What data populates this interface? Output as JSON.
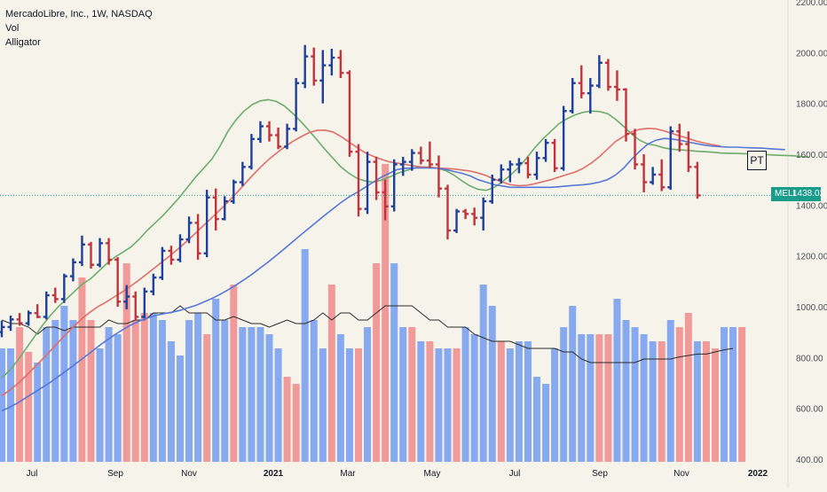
{
  "legend": {
    "symbol": "MercadoLibre, Inc., 1W, NASDAQ",
    "volume_label": "Vol",
    "indicator_label": "Alligator"
  },
  "price_tag": {
    "ticker": "MELI",
    "value": "1438.02",
    "color": "#1a9c8a"
  },
  "marker": {
    "label": "PT"
  },
  "chart_data": {
    "type": "ohlc",
    "title": "MercadoLibre, Inc., 1W, NASDAQ",
    "y_axis": {
      "ticks": [
        "2200.00",
        "2000.00",
        "1800.00",
        "1600.00",
        "1400.00",
        "1200.00",
        "1000.00",
        "800.00",
        "600.00",
        "400.00"
      ],
      "range": [
        400,
        2200
      ]
    },
    "x_axis": {
      "ticks": [
        "Jul",
        "Sep",
        "Nov",
        "2021",
        "Mar",
        "May",
        "Jul",
        "Sep",
        "Nov",
        "2022"
      ]
    },
    "colors": {
      "up": "#1e3f9a",
      "down": "#c2333b",
      "vol_up": "#87a9ef",
      "vol_down": "#f09a9a",
      "jaw": "#5677d8",
      "teeth": "#e06d68",
      "lips": "#6cad6c",
      "vol_ma": "#2b2b2b",
      "last_price_line": "#1a9c8a",
      "background": "#f5f3ea"
    },
    "last_price": 1438.02,
    "ohlc": [
      [
        900,
        945,
        880,
        920
      ],
      [
        920,
        965,
        905,
        950
      ],
      [
        950,
        975,
        925,
        935
      ],
      [
        935,
        985,
        925,
        975
      ],
      [
        975,
        1010,
        955,
        960
      ],
      [
        960,
        1060,
        950,
        1045
      ],
      [
        1045,
        1075,
        1015,
        1030
      ],
      [
        1030,
        1130,
        1015,
        1120
      ],
      [
        1120,
        1190,
        1100,
        1175
      ],
      [
        1175,
        1280,
        1160,
        1245
      ],
      [
        1245,
        1255,
        1150,
        1165
      ],
      [
        1165,
        1270,
        1155,
        1250
      ],
      [
        1250,
        1270,
        1165,
        1185
      ],
      [
        1185,
        1195,
        1000,
        1020
      ],
      [
        1020,
        1085,
        990,
        1040
      ],
      [
        1040,
        1060,
        945,
        960
      ],
      [
        960,
        1075,
        955,
        1060
      ],
      [
        1060,
        1130,
        1045,
        1115
      ],
      [
        1115,
        1235,
        1105,
        1220
      ],
      [
        1220,
        1240,
        1165,
        1185
      ],
      [
        1185,
        1285,
        1175,
        1265
      ],
      [
        1265,
        1355,
        1250,
        1330
      ],
      [
        1330,
        1365,
        1185,
        1210
      ],
      [
        1210,
        1460,
        1195,
        1430
      ],
      [
        1430,
        1465,
        1300,
        1345
      ],
      [
        1345,
        1435,
        1340,
        1415
      ],
      [
        1415,
        1500,
        1405,
        1490
      ],
      [
        1490,
        1570,
        1475,
        1550
      ],
      [
        1550,
        1680,
        1540,
        1660
      ],
      [
        1660,
        1730,
        1645,
        1710
      ],
      [
        1710,
        1730,
        1650,
        1675
      ],
      [
        1675,
        1705,
        1620,
        1630
      ],
      [
        1630,
        1720,
        1620,
        1700
      ],
      [
        1700,
        1900,
        1690,
        1880
      ],
      [
        1880,
        2030,
        1860,
        1985
      ],
      [
        1985,
        2020,
        1870,
        1890
      ],
      [
        1890,
        2010,
        1800,
        1950
      ],
      [
        1950,
        2015,
        1910,
        1980
      ],
      [
        1980,
        2010,
        1900,
        1920
      ],
      [
        1920,
        1930,
        1590,
        1610
      ],
      [
        1610,
        1640,
        1355,
        1385
      ],
      [
        1385,
        1610,
        1365,
        1570
      ],
      [
        1570,
        1590,
        1420,
        1450
      ],
      [
        1450,
        1500,
        1340,
        1395
      ],
      [
        1395,
        1580,
        1375,
        1560
      ],
      [
        1560,
        1590,
        1515,
        1570
      ],
      [
        1570,
        1620,
        1535,
        1605
      ],
      [
        1605,
        1630,
        1560,
        1575
      ],
      [
        1575,
        1650,
        1545,
        1560
      ],
      [
        1560,
        1595,
        1430,
        1465
      ],
      [
        1465,
        1480,
        1265,
        1300
      ],
      [
        1300,
        1385,
        1290,
        1375
      ],
      [
        1375,
        1385,
        1345,
        1365
      ],
      [
        1365,
        1390,
        1320,
        1350
      ],
      [
        1350,
        1430,
        1300,
        1415
      ],
      [
        1415,
        1520,
        1405,
        1500
      ],
      [
        1500,
        1560,
        1485,
        1540
      ],
      [
        1540,
        1575,
        1490,
        1560
      ],
      [
        1560,
        1585,
        1525,
        1565
      ],
      [
        1565,
        1590,
        1505,
        1520
      ],
      [
        1520,
        1610,
        1500,
        1585
      ],
      [
        1585,
        1660,
        1570,
        1645
      ],
      [
        1645,
        1660,
        1530,
        1545
      ],
      [
        1545,
        1790,
        1535,
        1770
      ],
      [
        1770,
        1900,
        1760,
        1880
      ],
      [
        1880,
        1950,
        1820,
        1840
      ],
      [
        1840,
        1900,
        1760,
        1870
      ],
      [
        1870,
        1990,
        1860,
        1960
      ],
      [
        1960,
        1975,
        1850,
        1865
      ],
      [
        1865,
        1930,
        1810,
        1855
      ],
      [
        1855,
        1860,
        1650,
        1680
      ],
      [
        1680,
        1700,
        1540,
        1560
      ],
      [
        1560,
        1600,
        1450,
        1490
      ],
      [
        1490,
        1550,
        1480,
        1520
      ],
      [
        1520,
        1580,
        1455,
        1470
      ],
      [
        1470,
        1710,
        1460,
        1690
      ],
      [
        1690,
        1720,
        1610,
        1640
      ],
      [
        1640,
        1690,
        1530,
        1550
      ],
      [
        1550,
        1570,
        1425,
        1438
      ]
    ],
    "alligator": {
      "jaw": [
        590,
        605,
        622,
        642,
        662,
        682,
        702,
        725,
        748,
        772,
        796,
        820,
        845,
        868,
        890,
        910,
        928,
        943,
        955,
        965,
        972,
        978,
        985,
        995,
        1005,
        1018,
        1032,
        1048,
        1066,
        1085,
        1106,
        1128,
        1152,
        1176,
        1202,
        1228,
        1255,
        1282,
        1308,
        1334,
        1360,
        1385,
        1410,
        1432,
        1450,
        1470,
        1490,
        1510,
        1525,
        1540,
        1545,
        1546,
        1546,
        1546,
        1545,
        1540,
        1532,
        1525,
        1515,
        1500,
        1490,
        1480,
        1475,
        1470,
        1470,
        1470,
        1470,
        1470,
        1470,
        1472,
        1475,
        1478,
        1480,
        1484,
        1490,
        1500,
        1518,
        1545,
        1580,
        1612,
        1640,
        1655,
        1662,
        1660,
        1655,
        1648,
        1642,
        1636,
        1632,
        1630,
        1628,
        1628,
        1626,
        1625,
        1624,
        1622,
        1620,
        1618
      ],
      "jaw_start_index": 0,
      "teeth": [
        650,
        672,
        698,
        728,
        760,
        792,
        826,
        860,
        893,
        925,
        955,
        980,
        1002,
        1020,
        1040,
        1060,
        1082,
        1105,
        1130,
        1155,
        1180,
        1205,
        1232,
        1260,
        1290,
        1320,
        1350,
        1380,
        1412,
        1445,
        1480,
        1515,
        1548,
        1578,
        1604,
        1628,
        1650,
        1668,
        1684,
        1694,
        1695,
        1688,
        1670,
        1648,
        1626,
        1606,
        1592,
        1580,
        1570,
        1565,
        1560,
        1554,
        1550,
        1548,
        1546,
        1544,
        1542,
        1538,
        1534,
        1526,
        1516,
        1502,
        1490,
        1480,
        1476,
        1478,
        1484,
        1492,
        1500,
        1510,
        1520,
        1530,
        1545,
        1565,
        1590,
        1620,
        1650,
        1670,
        1688,
        1698,
        1702,
        1700,
        1692,
        1682,
        1672,
        1662,
        1652,
        1644,
        1638,
        1632
      ],
      "teeth_start_index": 0,
      "lips": [
        720,
        750,
        790,
        835,
        880,
        925,
        965,
        1000,
        1030,
        1060,
        1090,
        1110,
        1140,
        1170,
        1195,
        1215,
        1235,
        1265,
        1300,
        1330,
        1360,
        1395,
        1430,
        1470,
        1510,
        1545,
        1580,
        1630,
        1690,
        1735,
        1770,
        1795,
        1810,
        1815,
        1808,
        1790,
        1762,
        1730,
        1695,
        1658,
        1620,
        1585,
        1550,
        1525,
        1505,
        1495,
        1490,
        1498,
        1510,
        1525,
        1535,
        1545,
        1550,
        1550,
        1545,
        1535,
        1518,
        1495,
        1475,
        1462,
        1458,
        1470,
        1492,
        1518,
        1548,
        1585,
        1625,
        1660,
        1690,
        1720,
        1740,
        1755,
        1765,
        1770,
        1768,
        1760,
        1738,
        1710,
        1680,
        1655,
        1640,
        1635,
        1625,
        1620,
        1617,
        1615,
        1612,
        1610,
        1608,
        1605,
        1604,
        1603,
        1602,
        1602,
        1600,
        1598,
        1596,
        1595,
        1594,
        1591,
        1588
      ],
      "lips_start_index": 0
    },
    "volume": {
      "axis_ticks": [
        "600.00",
        "800.00"
      ],
      "bars": [
        [
          1,
          560
        ],
        [
          1,
          560
        ],
        [
          0,
          590
        ],
        [
          0,
          555
        ],
        [
          1,
          540
        ],
        [
          1,
          590
        ],
        [
          1,
          600
        ],
        [
          1,
          620
        ],
        [
          1,
          600
        ],
        [
          0,
          660
        ],
        [
          0,
          600
        ],
        [
          1,
          560
        ],
        [
          1,
          590
        ],
        [
          1,
          580
        ],
        [
          0,
          680
        ],
        [
          0,
          600
        ],
        [
          0,
          610
        ],
        [
          1,
          610
        ],
        [
          1,
          600
        ],
        [
          1,
          570
        ],
        [
          1,
          550
        ],
        [
          1,
          600
        ],
        [
          1,
          610
        ],
        [
          0,
          580
        ],
        [
          1,
          630
        ],
        [
          1,
          600
        ],
        [
          0,
          650
        ],
        [
          1,
          590
        ],
        [
          1,
          590
        ],
        [
          1,
          590
        ],
        [
          1,
          580
        ],
        [
          1,
          560
        ],
        [
          0,
          520
        ],
        [
          0,
          510
        ],
        [
          1,
          700
        ],
        [
          1,
          600
        ],
        [
          1,
          560
        ],
        [
          0,
          650
        ],
        [
          1,
          580
        ],
        [
          1,
          560
        ],
        [
          0,
          560
        ],
        [
          1,
          590
        ],
        [
          0,
          680
        ],
        [
          0,
          820
        ],
        [
          1,
          680
        ],
        [
          1,
          590
        ],
        [
          0,
          590
        ],
        [
          1,
          570
        ],
        [
          0,
          570
        ],
        [
          1,
          560
        ],
        [
          1,
          560
        ],
        [
          0,
          560
        ],
        [
          1,
          590
        ],
        [
          1,
          580
        ],
        [
          1,
          650
        ],
        [
          1,
          620
        ],
        [
          0,
          570
        ],
        [
          1,
          560
        ],
        [
          1,
          570
        ],
        [
          1,
          570
        ],
        [
          1,
          520
        ],
        [
          1,
          510
        ],
        [
          1,
          560
        ],
        [
          1,
          590
        ],
        [
          1,
          620
        ],
        [
          1,
          580
        ],
        [
          1,
          580
        ],
        [
          0,
          580
        ],
        [
          0,
          580
        ],
        [
          1,
          630
        ],
        [
          1,
          600
        ],
        [
          1,
          590
        ],
        [
          1,
          580
        ],
        [
          1,
          570
        ],
        [
          0,
          570
        ],
        [
          1,
          600
        ],
        [
          0,
          590
        ],
        [
          0,
          610
        ],
        [
          1,
          570
        ],
        [
          0,
          570
        ],
        [
          0,
          560
        ],
        [
          1,
          590
        ],
        [
          1,
          590
        ],
        [
          0,
          590
        ]
      ],
      "ma": [
        600,
        595,
        595,
        590,
        580,
        590,
        590,
        585,
        590,
        590,
        590,
        590,
        600,
        595,
        595,
        600,
        600,
        610,
        610,
        610,
        620,
        610,
        610,
        610,
        600,
        600,
        605,
        600,
        595,
        595,
        590,
        595,
        600,
        595,
        595,
        600,
        610,
        600,
        610,
        610,
        600,
        600,
        610,
        620,
        620,
        620,
        620,
        610,
        600,
        600,
        590,
        590,
        590,
        580,
        575,
        570,
        570,
        570,
        565,
        560,
        560,
        560,
        560,
        555,
        555,
        545,
        540,
        540,
        540,
        540,
        540,
        540,
        545,
        545,
        545,
        545,
        548,
        550,
        552,
        552,
        555,
        558,
        560
      ]
    }
  }
}
